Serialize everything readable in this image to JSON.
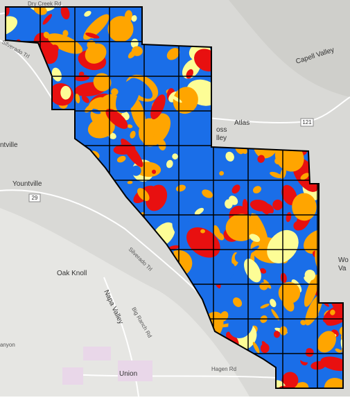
{
  "map": {
    "labels": {
      "top_road": "Dry Creek Rd",
      "silverado_north": "Silverado Trl",
      "partial_left": "ntville",
      "yountville": "Yountville",
      "route_29": "29",
      "atlas": "Atlas",
      "route_121": "121",
      "capell_valley": "Capell Valley",
      "foss_valley_1": "oss",
      "foss_valley_2": "lley",
      "oak_knoll": "Oak Knoll",
      "silverado_south": "Silverado Trl",
      "napa_valley": "Napa Valley",
      "big_ranch": "Big Ranch Rd",
      "union": "Union",
      "hagen": "Hagen Rd",
      "wooden_1": "Wo",
      "wooden_2": "Va",
      "partial_bottom": "anyon"
    }
  }
}
